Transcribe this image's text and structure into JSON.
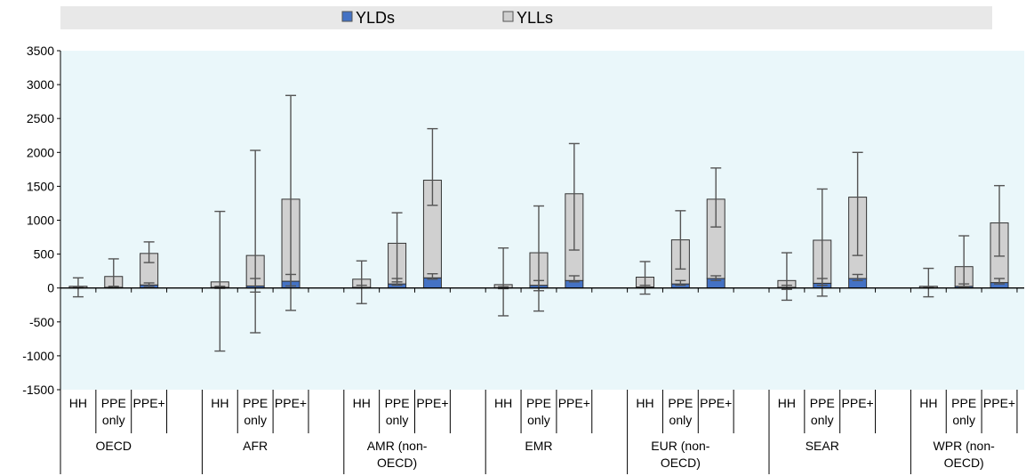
{
  "chart_data": {
    "type": "bar",
    "stacked": true,
    "ylim": [
      -1500,
      3500
    ],
    "yticks": [
      -1500,
      -1000,
      -500,
      0,
      500,
      1000,
      1500,
      2000,
      2500,
      3000,
      3500
    ],
    "grid": false,
    "legend": {
      "placement": "top",
      "entries": [
        {
          "label": "YLDs",
          "color": "#4472c4"
        },
        {
          "label": "YLLs",
          "color": "#d0d0d0"
        }
      ]
    },
    "groups": [
      {
        "label": "OECD",
        "bars": [
          {
            "label": "HH",
            "yld": 5,
            "yll": 20,
            "err_total": [
              -130,
              150
            ],
            "err_yld": [
              0,
              15
            ]
          },
          {
            "label": "PPE only",
            "yld": 10,
            "yll": 160,
            "err_total": [
              0,
              430
            ],
            "err_yld": [
              0,
              25
            ]
          },
          {
            "label": "PPE+",
            "yld": 45,
            "yll": 465,
            "err_total": [
              375,
              680
            ],
            "err_yld": [
              20,
              75
            ]
          }
        ]
      },
      {
        "label": "AFR",
        "bars": [
          {
            "label": "HH",
            "yld": 10,
            "yll": 80,
            "err_total": [
              -930,
              1130
            ],
            "err_yld": [
              -5,
              25
            ]
          },
          {
            "label": "PPE only",
            "yld": 30,
            "yll": 450,
            "err_total": [
              -660,
              2030
            ],
            "err_yld": [
              -60,
              140
            ]
          },
          {
            "label": "PPE+",
            "yld": 100,
            "yll": 1210,
            "err_total": [
              -330,
              2840
            ],
            "err_yld": [
              30,
              200
            ]
          }
        ]
      },
      {
        "label": "AMR (non-OECD)",
        "bars": [
          {
            "label": "HH",
            "yld": 10,
            "yll": 120,
            "err_total": [
              -230,
              400
            ],
            "err_yld": [
              0,
              40
            ]
          },
          {
            "label": "PPE only",
            "yld": 60,
            "yll": 600,
            "err_total": [
              90,
              1110
            ],
            "err_yld": [
              40,
              140
            ]
          },
          {
            "label": "PPE+",
            "yld": 150,
            "yll": 1440,
            "err_total": [
              1220,
              2350
            ],
            "err_yld": [
              130,
              210
            ]
          }
        ]
      },
      {
        "label": "EMR",
        "bars": [
          {
            "label": "HH",
            "yld": 5,
            "yll": 45,
            "err_total": [
              -410,
              590
            ],
            "err_yld": [
              -10,
              20
            ]
          },
          {
            "label": "PPE only",
            "yld": 40,
            "yll": 480,
            "err_total": [
              -340,
              1210
            ],
            "err_yld": [
              -40,
              110
            ]
          },
          {
            "label": "PPE+",
            "yld": 110,
            "yll": 1280,
            "err_total": [
              560,
              2130
            ],
            "err_yld": [
              90,
              180
            ]
          }
        ]
      },
      {
        "label": "EUR (non-OECD)",
        "bars": [
          {
            "label": "HH",
            "yld": 15,
            "yll": 145,
            "err_total": [
              -90,
              390
            ],
            "err_yld": [
              0,
              40
            ]
          },
          {
            "label": "PPE only",
            "yld": 60,
            "yll": 650,
            "err_total": [
              280,
              1140
            ],
            "err_yld": [
              40,
              110
            ]
          },
          {
            "label": "PPE+",
            "yld": 140,
            "yll": 1170,
            "err_total": [
              900,
              1770
            ],
            "err_yld": [
              110,
              180
            ]
          }
        ]
      },
      {
        "label": "SEAR",
        "bars": [
          {
            "label": "HH",
            "yld": 10,
            "yll": 100,
            "err_total": [
              -180,
              520
            ],
            "err_yld": [
              -20,
              40
            ]
          },
          {
            "label": "PPE only",
            "yld": 70,
            "yll": 635,
            "err_total": [
              -120,
              1460
            ],
            "err_yld": [
              40,
              140
            ]
          },
          {
            "label": "PPE+",
            "yld": 140,
            "yll": 1200,
            "err_total": [
              480,
              2000
            ],
            "err_yld": [
              110,
              200
            ]
          }
        ]
      },
      {
        "label": "WPR (non-OECD)",
        "bars": [
          {
            "label": "HH",
            "yld": 5,
            "yll": 20,
            "err_total": [
              -130,
              290
            ],
            "err_yld": [
              0,
              15
            ]
          },
          {
            "label": "PPE only",
            "yld": 25,
            "yll": 290,
            "err_total": [
              20,
              770
            ],
            "err_yld": [
              10,
              60
            ]
          },
          {
            "label": "PPE+",
            "yld": 80,
            "yll": 880,
            "err_total": [
              470,
              1510
            ],
            "err_yld": [
              60,
              140
            ]
          }
        ]
      }
    ]
  }
}
